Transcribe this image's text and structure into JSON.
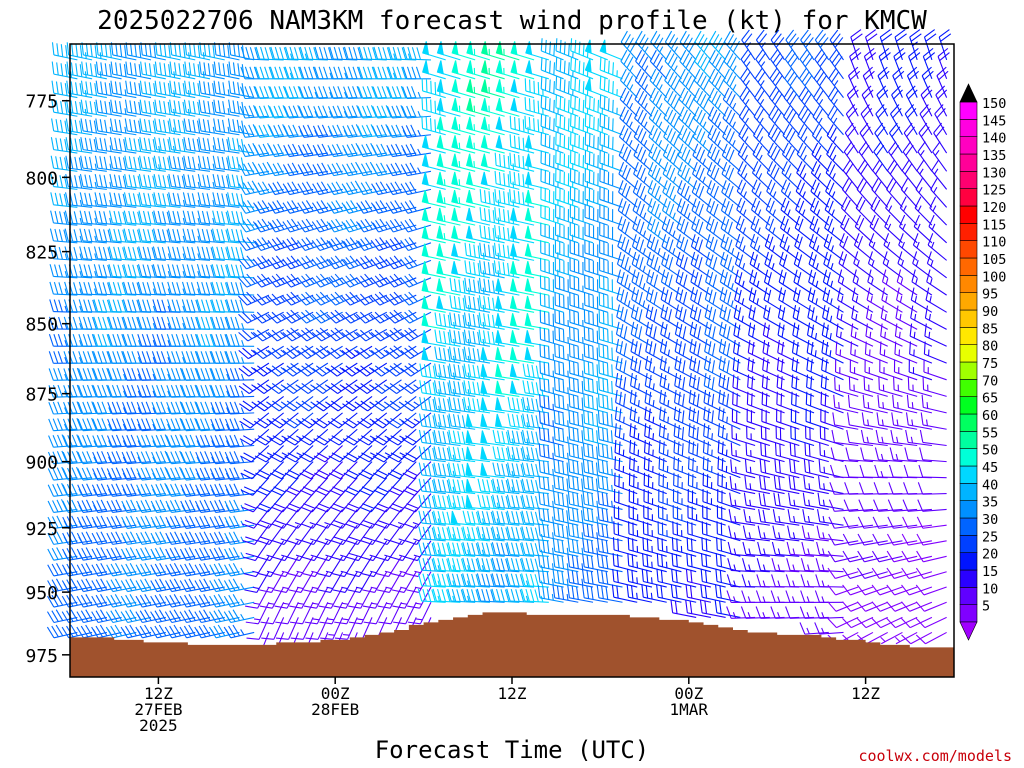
{
  "chart_data": {
    "type": "wind-barb-profile",
    "title": "2025022706 NAM3KM forecast wind profile (kt) for KMCW",
    "xlabel": "Forecast Time (UTC)",
    "ylabel": "",
    "credit": "coolwx.com/models",
    "x_ticks": [
      {
        "label": "12Z",
        "sub1": "27FEB",
        "sub2": "2025",
        "hour": 6
      },
      {
        "label": "00Z",
        "sub1": "28FEB",
        "sub2": "",
        "hour": 18
      },
      {
        "label": "12Z",
        "sub1": "",
        "sub2": "",
        "hour": 30
      },
      {
        "label": "00Z",
        "sub1": "1MAR",
        "sub2": "",
        "hour": 42
      },
      {
        "label": "12Z",
        "sub1": "",
        "sub2": "",
        "hour": 54
      }
    ],
    "x_range_hours": [
      0,
      60
    ],
    "y_ticks": [
      "775",
      "800",
      "825",
      "850",
      "875",
      "900",
      "925",
      "950",
      "975"
    ],
    "y_range_hPa": [
      757,
      984
    ],
    "log_pressure": true,
    "speed_colorbar": {
      "values": [
        "5",
        "10",
        "15",
        "20",
        "25",
        "30",
        "35",
        "40",
        "45",
        "50",
        "55",
        "60",
        "65",
        "70",
        "75",
        "80",
        "85",
        "90",
        "95",
        "100",
        "105",
        "110",
        "115",
        "120",
        "125",
        "130",
        "135",
        "140",
        "145",
        "150"
      ],
      "colors": [
        "#8000ff",
        "#6000ff",
        "#2a00ff",
        "#0014ff",
        "#0040ff",
        "#0064ff",
        "#0090ff",
        "#00b4ff",
        "#00d8ff",
        "#00ffd8",
        "#00ffa0",
        "#00ff60",
        "#00ff20",
        "#40ff00",
        "#a0ff00",
        "#e8ff00",
        "#ffe800",
        "#ffc800",
        "#ffa800",
        "#ff8800",
        "#ff6800",
        "#ff4800",
        "#ff2000",
        "#ff0000",
        "#ff0040",
        "#ff0070",
        "#ff0098",
        "#ff00c0",
        "#ff00e0",
        "#ff00ff"
      ],
      "over_color": "#000000",
      "under_color": "#a000ff"
    },
    "terrain_color": "#a0522d",
    "surface_pressure_hPa": [
      968,
      968,
      968,
      969,
      969,
      970,
      970,
      970,
      971,
      971,
      971,
      971,
      971,
      971,
      970,
      970,
      970,
      969,
      969,
      968,
      967,
      966,
      965,
      963,
      962,
      961,
      960,
      959,
      958,
      958,
      958,
      959,
      959,
      959,
      959,
      959,
      959,
      959,
      960,
      960,
      961,
      961,
      962,
      963,
      964,
      965,
      966,
      966,
      967,
      967,
      967,
      968,
      969,
      969,
      970,
      971,
      971,
      972,
      972,
      972
    ],
    "wind_field": {
      "times_hours": [
        0,
        60
      ],
      "levels_hPa": [
        762,
        768,
        774,
        780,
        786,
        792,
        798,
        804,
        810,
        816,
        822,
        828,
        834,
        840,
        846,
        852,
        858,
        864,
        870,
        876,
        882,
        888,
        894,
        900,
        906,
        912,
        918,
        924,
        930,
        936,
        942,
        948,
        954,
        960,
        966
      ]
    }
  }
}
